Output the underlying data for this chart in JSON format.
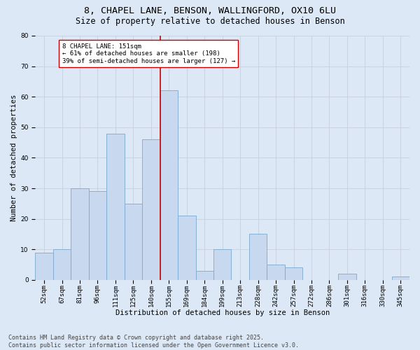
{
  "title_line1": "8, CHAPEL LANE, BENSON, WALLINGFORD, OX10 6LU",
  "title_line2": "Size of property relative to detached houses in Benson",
  "xlabel": "Distribution of detached houses by size in Benson",
  "ylabel": "Number of detached properties",
  "footer_line1": "Contains HM Land Registry data © Crown copyright and database right 2025.",
  "footer_line2": "Contains public sector information licensed under the Open Government Licence v3.0.",
  "annotation_line1": "8 CHAPEL LANE: 151sqm",
  "annotation_line2": "← 61% of detached houses are smaller (198)",
  "annotation_line3": "39% of semi-detached houses are larger (127) →",
  "bar_labels": [
    "52sqm",
    "67sqm",
    "81sqm",
    "96sqm",
    "111sqm",
    "125sqm",
    "140sqm",
    "155sqm",
    "169sqm",
    "184sqm",
    "199sqm",
    "213sqm",
    "228sqm",
    "242sqm",
    "257sqm",
    "272sqm",
    "286sqm",
    "301sqm",
    "316sqm",
    "330sqm",
    "345sqm"
  ],
  "bar_values": [
    9,
    10,
    30,
    29,
    48,
    25,
    46,
    62,
    21,
    3,
    10,
    0,
    15,
    5,
    4,
    0,
    0,
    2,
    0,
    0,
    1
  ],
  "bar_color": "#c8d8ee",
  "bar_edge_color": "#7aaad0",
  "vline_color": "#cc0000",
  "vline_x_index": 7,
  "ylim": [
    0,
    80
  ],
  "yticks": [
    0,
    10,
    20,
    30,
    40,
    50,
    60,
    70,
    80
  ],
  "grid_color": "#c8d0dc",
  "background_color": "#dce8f5",
  "annotation_box_facecolor": "#ffffff",
  "annotation_box_edgecolor": "#cc0000",
  "title_fontsize": 9.5,
  "subtitle_fontsize": 8.5,
  "axis_label_fontsize": 7.5,
  "tick_fontsize": 6.5,
  "annotation_fontsize": 6.5,
  "footer_fontsize": 6.0
}
